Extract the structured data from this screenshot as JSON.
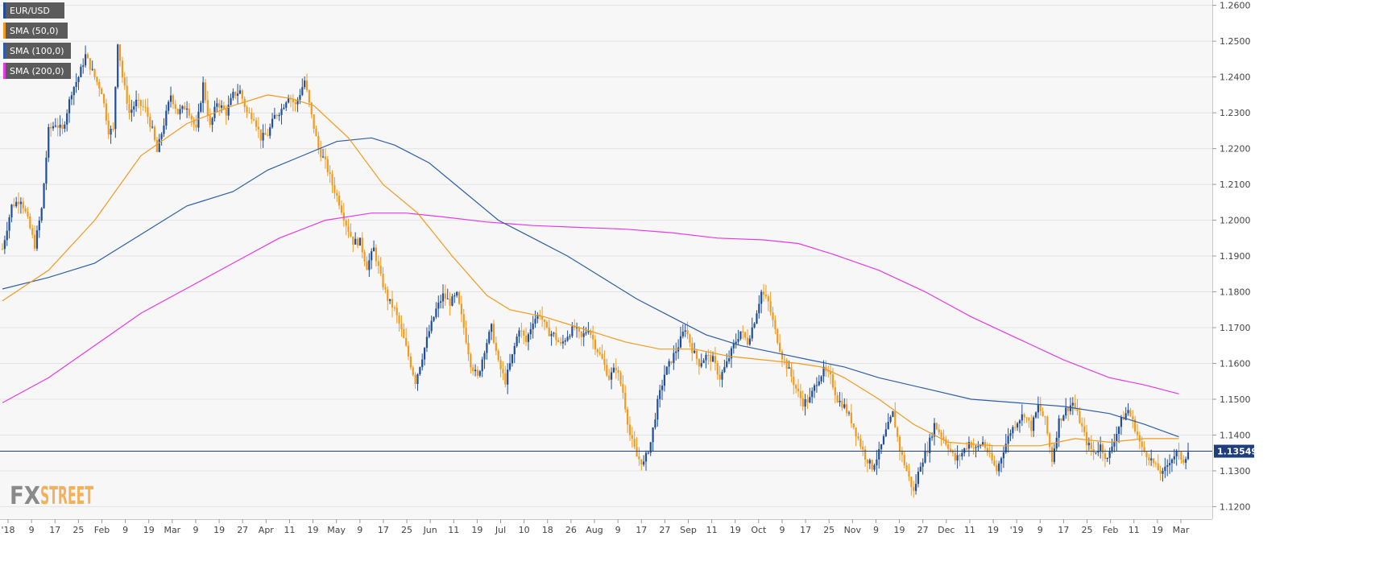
{
  "chart_data": {
    "type": "candlestick",
    "symbol": "EUR/USD",
    "ylim": [
      1.1165,
      1.2615
    ],
    "y_ticks": [
      "1.2600",
      "1.2500",
      "1.2400",
      "1.2300",
      "1.2200",
      "1.2100",
      "1.2000",
      "1.1900",
      "1.1800",
      "1.1700",
      "1.1600",
      "1.1500",
      "1.1400",
      "1.1300",
      "1.1200"
    ],
    "x_tick_labels": [
      "'18",
      "9",
      "17",
      "25",
      "Feb",
      "9",
      "19",
      "Mar",
      "9",
      "19",
      "27",
      "Apr",
      "11",
      "19",
      "May",
      "9",
      "17",
      "25",
      "Jun",
      "11",
      "19",
      "Jul",
      "10",
      "18",
      "26",
      "Aug",
      "9",
      "17",
      "27",
      "Sep",
      "11",
      "19",
      "Oct",
      "9",
      "17",
      "25",
      "Nov",
      "9",
      "19",
      "27",
      "Dec",
      "11",
      "19",
      "'19",
      "9",
      "17",
      "25",
      "Feb",
      "11",
      "19",
      "Mar"
    ],
    "legend": [
      {
        "label": "EUR/USD",
        "color": "#1f4e9c"
      },
      {
        "label": "SMA (50,0)",
        "color": "#f39a1e"
      },
      {
        "label": "SMA (100,0)",
        "color": "#2b5ea8"
      },
      {
        "label": "SMA (200,0)",
        "color": "#e639e6"
      }
    ],
    "current_price": {
      "label": "1.13549",
      "value": 1.13549
    },
    "colors": {
      "up": "#1f4e9c",
      "down": "#f39a1e",
      "sma50": "#f39a1e",
      "sma100": "#2b5ea8",
      "sma200": "#e639e6",
      "price_line": "#1f3f7a",
      "grid": "#e3e3e3",
      "background": "#f7f7f7"
    },
    "close_path": [
      [
        0,
        1.192
      ],
      [
        4,
        1.204
      ],
      [
        8,
        1.206
      ],
      [
        11,
        1.2
      ],
      [
        14,
        1.193
      ],
      [
        17,
        1.203
      ],
      [
        20,
        1.225
      ],
      [
        23,
        1.227
      ],
      [
        26,
        1.225
      ],
      [
        30,
        1.236
      ],
      [
        33,
        1.24
      ],
      [
        36,
        1.246
      ],
      [
        40,
        1.24
      ],
      [
        43,
        1.236
      ],
      [
        46,
        1.225
      ],
      [
        48,
        1.225
      ],
      [
        50,
        1.25
      ],
      [
        52,
        1.24
      ],
      [
        55,
        1.23
      ],
      [
        58,
        1.233
      ],
      [
        62,
        1.231
      ],
      [
        65,
        1.225
      ],
      [
        67,
        1.219
      ],
      [
        70,
        1.227
      ],
      [
        73,
        1.235
      ],
      [
        76,
        1.23
      ],
      [
        80,
        1.232
      ],
      [
        84,
        1.225
      ],
      [
        87,
        1.238
      ],
      [
        90,
        1.226
      ],
      [
        93,
        1.233
      ],
      [
        97,
        1.23
      ],
      [
        100,
        1.235
      ],
      [
        103,
        1.236
      ],
      [
        106,
        1.23
      ],
      [
        109,
        1.229
      ],
      [
        112,
        1.223
      ],
      [
        115,
        1.224
      ],
      [
        118,
        1.229
      ],
      [
        121,
        1.231
      ],
      [
        124,
        1.235
      ],
      [
        127,
        1.232
      ],
      [
        131,
        1.239
      ],
      [
        134,
        1.229
      ],
      [
        137,
        1.22
      ],
      [
        140,
        1.216
      ],
      [
        143,
        1.21
      ],
      [
        146,
        1.205
      ],
      [
        149,
        1.199
      ],
      [
        152,
        1.194
      ],
      [
        155,
        1.194
      ],
      [
        158,
        1.187
      ],
      [
        161,
        1.192
      ],
      [
        164,
        1.184
      ],
      [
        167,
        1.178
      ],
      [
        170,
        1.175
      ],
      [
        173,
        1.169
      ],
      [
        176,
        1.162
      ],
      [
        179,
        1.155
      ],
      [
        182,
        1.162
      ],
      [
        185,
        1.169
      ],
      [
        188,
        1.175
      ],
      [
        191,
        1.179
      ],
      [
        194,
        1.177
      ],
      [
        197,
        1.179
      ],
      [
        200,
        1.17
      ],
      [
        203,
        1.16
      ],
      [
        206,
        1.156
      ],
      [
        209,
        1.164
      ],
      [
        212,
        1.17
      ],
      [
        215,
        1.16
      ],
      [
        218,
        1.155
      ],
      [
        221,
        1.162
      ],
      [
        224,
        1.17
      ],
      [
        227,
        1.166
      ],
      [
        230,
        1.172
      ],
      [
        233,
        1.174
      ],
      [
        236,
        1.169
      ],
      [
        239,
        1.168
      ],
      [
        242,
        1.165
      ],
      [
        245,
        1.168
      ],
      [
        248,
        1.17
      ],
      [
        251,
        1.167
      ],
      [
        254,
        1.17
      ],
      [
        257,
        1.165
      ],
      [
        260,
        1.161
      ],
      [
        263,
        1.156
      ],
      [
        266,
        1.159
      ],
      [
        269,
        1.152
      ],
      [
        272,
        1.14
      ],
      [
        275,
        1.134
      ],
      [
        278,
        1.132
      ],
      [
        281,
        1.138
      ],
      [
        284,
        1.149
      ],
      [
        287,
        1.157
      ],
      [
        290,
        1.161
      ],
      [
        293,
        1.165
      ],
      [
        296,
        1.17
      ],
      [
        299,
        1.164
      ],
      [
        302,
        1.16
      ],
      [
        305,
        1.162
      ],
      [
        308,
        1.161
      ],
      [
        311,
        1.156
      ],
      [
        314,
        1.16
      ],
      [
        317,
        1.165
      ],
      [
        320,
        1.169
      ],
      [
        323,
        1.166
      ],
      [
        326,
        1.172
      ],
      [
        329,
        1.18
      ],
      [
        332,
        1.177
      ],
      [
        335,
        1.169
      ],
      [
        338,
        1.162
      ],
      [
        341,
        1.158
      ],
      [
        344,
        1.153
      ],
      [
        347,
        1.149
      ],
      [
        350,
        1.15
      ],
      [
        353,
        1.155
      ],
      [
        356,
        1.158
      ],
      [
        359,
        1.156
      ],
      [
        362,
        1.15
      ],
      [
        365,
        1.148
      ],
      [
        368,
        1.144
      ],
      [
        371,
        1.139
      ],
      [
        374,
        1.134
      ],
      [
        377,
        1.131
      ],
      [
        380,
        1.135
      ],
      [
        383,
        1.141
      ],
      [
        386,
        1.146
      ],
      [
        389,
        1.136
      ],
      [
        392,
        1.13
      ],
      [
        395,
        1.124
      ],
      [
        398,
        1.132
      ],
      [
        401,
        1.136
      ],
      [
        404,
        1.143
      ],
      [
        407,
        1.14
      ],
      [
        410,
        1.137
      ],
      [
        413,
        1.133
      ],
      [
        416,
        1.135
      ],
      [
        419,
        1.138
      ],
      [
        422,
        1.136
      ],
      [
        425,
        1.138
      ],
      [
        428,
        1.134
      ],
      [
        431,
        1.13
      ],
      [
        434,
        1.136
      ],
      [
        437,
        1.141
      ],
      [
        440,
        1.144
      ],
      [
        443,
        1.146
      ],
      [
        446,
        1.142
      ],
      [
        449,
        1.148
      ],
      [
        452,
        1.144
      ],
      [
        455,
        1.133
      ],
      [
        458,
        1.144
      ],
      [
        461,
        1.147
      ],
      [
        464,
        1.149
      ],
      [
        467,
        1.144
      ],
      [
        470,
        1.138
      ],
      [
        473,
        1.135
      ],
      [
        476,
        1.137
      ],
      [
        479,
        1.133
      ],
      [
        482,
        1.139
      ],
      [
        485,
        1.144
      ],
      [
        488,
        1.147
      ],
      [
        491,
        1.142
      ],
      [
        494,
        1.136
      ],
      [
        497,
        1.134
      ],
      [
        500,
        1.131
      ],
      [
        503,
        1.129
      ],
      [
        506,
        1.133
      ],
      [
        509,
        1.135
      ],
      [
        512,
        1.133
      ],
      [
        514,
        1.1355
      ]
    ],
    "sma50": [
      [
        0,
        1.1775
      ],
      [
        20,
        1.186
      ],
      [
        40,
        1.2
      ],
      [
        60,
        1.218
      ],
      [
        80,
        1.227
      ],
      [
        100,
        1.232
      ],
      [
        115,
        1.235
      ],
      [
        125,
        1.234
      ],
      [
        135,
        1.232
      ],
      [
        150,
        1.223
      ],
      [
        165,
        1.21
      ],
      [
        180,
        1.202
      ],
      [
        195,
        1.19
      ],
      [
        210,
        1.179
      ],
      [
        220,
        1.175
      ],
      [
        235,
        1.173
      ],
      [
        250,
        1.17
      ],
      [
        260,
        1.168
      ],
      [
        270,
        1.166
      ],
      [
        285,
        1.164
      ],
      [
        300,
        1.164
      ],
      [
        315,
        1.162
      ],
      [
        330,
        1.161
      ],
      [
        345,
        1.16
      ],
      [
        355,
        1.159
      ],
      [
        365,
        1.156
      ],
      [
        380,
        1.15
      ],
      [
        395,
        1.143
      ],
      [
        410,
        1.138
      ],
      [
        430,
        1.137
      ],
      [
        450,
        1.137
      ],
      [
        465,
        1.139
      ],
      [
        480,
        1.138
      ],
      [
        495,
        1.139
      ],
      [
        510,
        1.139
      ]
    ],
    "sma100": [
      [
        0,
        1.1808
      ],
      [
        20,
        1.184
      ],
      [
        40,
        1.188
      ],
      [
        60,
        1.196
      ],
      [
        80,
        1.204
      ],
      [
        100,
        1.208
      ],
      [
        115,
        1.214
      ],
      [
        130,
        1.218
      ],
      [
        145,
        1.222
      ],
      [
        160,
        1.223
      ],
      [
        170,
        1.221
      ],
      [
        185,
        1.216
      ],
      [
        200,
        1.208
      ],
      [
        215,
        1.2
      ],
      [
        230,
        1.195
      ],
      [
        245,
        1.19
      ],
      [
        260,
        1.184
      ],
      [
        275,
        1.178
      ],
      [
        290,
        1.173
      ],
      [
        305,
        1.168
      ],
      [
        320,
        1.165
      ],
      [
        335,
        1.163
      ],
      [
        350,
        1.161
      ],
      [
        365,
        1.159
      ],
      [
        380,
        1.156
      ],
      [
        400,
        1.153
      ],
      [
        420,
        1.15
      ],
      [
        440,
        1.149
      ],
      [
        460,
        1.148
      ],
      [
        480,
        1.146
      ],
      [
        495,
        1.143
      ],
      [
        510,
        1.1395
      ]
    ],
    "sma200": [
      [
        0,
        1.149
      ],
      [
        20,
        1.156
      ],
      [
        40,
        1.165
      ],
      [
        60,
        1.174
      ],
      [
        80,
        1.181
      ],
      [
        100,
        1.188
      ],
      [
        120,
        1.195
      ],
      [
        140,
        1.2
      ],
      [
        160,
        1.202
      ],
      [
        175,
        1.202
      ],
      [
        190,
        1.201
      ],
      [
        210,
        1.1995
      ],
      [
        230,
        1.1985
      ],
      [
        250,
        1.198
      ],
      [
        270,
        1.1975
      ],
      [
        290,
        1.1965
      ],
      [
        310,
        1.195
      ],
      [
        330,
        1.1945
      ],
      [
        345,
        1.1935
      ],
      [
        360,
        1.1905
      ],
      [
        380,
        1.186
      ],
      [
        400,
        1.18
      ],
      [
        420,
        1.173
      ],
      [
        440,
        1.167
      ],
      [
        460,
        1.161
      ],
      [
        480,
        1.156
      ],
      [
        495,
        1.154
      ],
      [
        510,
        1.1515
      ]
    ]
  }
}
